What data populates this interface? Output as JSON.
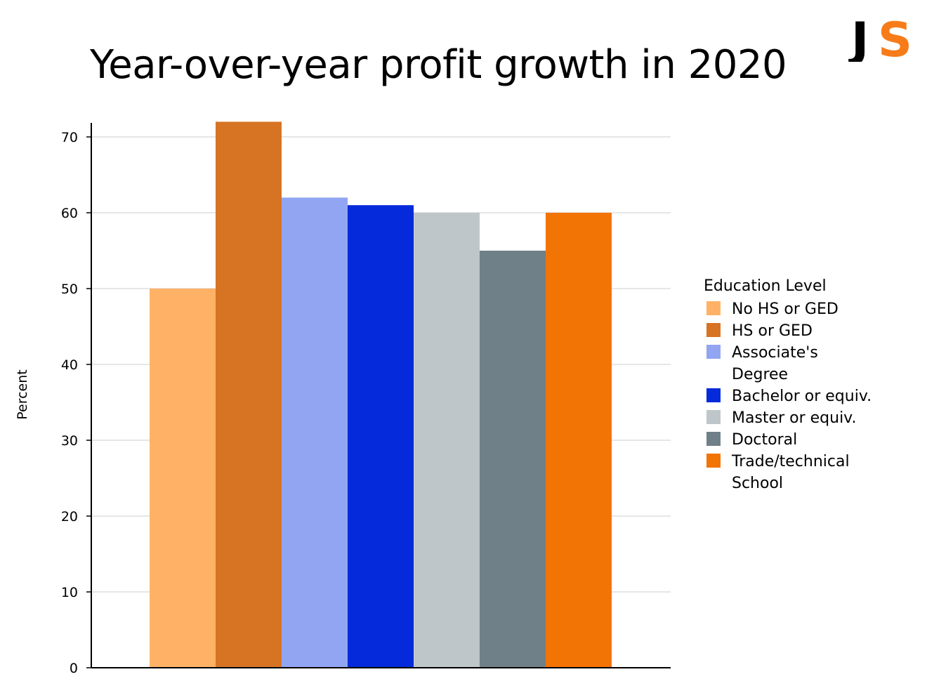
{
  "page": {
    "title": "Year-over-year profit growth in 2020"
  },
  "logo": {
    "text": "JS",
    "colors": {
      "j": "#000000",
      "s": "#f77c19"
    }
  },
  "chart_data": {
    "type": "bar",
    "title": "Year-over-year profit growth in 2020",
    "xlabel": "",
    "ylabel": "Percent",
    "ylim": [
      0,
      72
    ],
    "yticks": [
      0,
      10,
      20,
      30,
      40,
      50,
      60,
      70
    ],
    "grid": true,
    "legend_title": "Education Level",
    "legend_position": "right",
    "series": [
      {
        "name": "No HS or GED",
        "value": 50,
        "color": "#ffb266"
      },
      {
        "name": "HS or GED",
        "value": 72,
        "color": "#d67424"
      },
      {
        "name": "Associate's Degree",
        "value": 62,
        "color": "#92a5f2"
      },
      {
        "name": "Bachelor or equiv.",
        "value": 61,
        "color": "#042adb"
      },
      {
        "name": "Master or equiv.",
        "value": 60,
        "color": "#bfc6c9"
      },
      {
        "name": "Doctoral",
        "value": 55,
        "color": "#6f8088"
      },
      {
        "name": "Trade/technical School",
        "value": 60,
        "color": "#f27405"
      }
    ]
  }
}
